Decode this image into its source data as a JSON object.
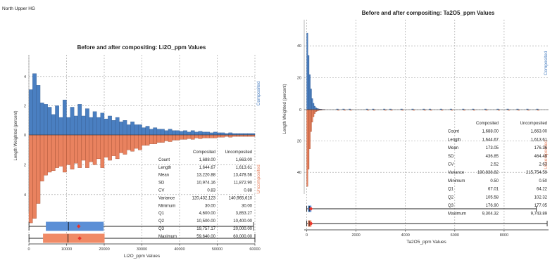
{
  "page": {
    "title": "North Upper HG"
  },
  "colors": {
    "composited": "#4a7fc1",
    "uncomposited": "#e9825f",
    "composited_box": "#5b8fd6",
    "uncomposited_box": "#f08a66",
    "mean_marker": "#e8332a",
    "grid": "#9a9a9a"
  },
  "chart_data": [
    {
      "type": "histogram",
      "title": "Before and after compositing: Li2O_ppm Values",
      "xlabel": "Li2O_ppm Values",
      "ylabel": "Length Weighted (percent)",
      "xlim": [
        0,
        60000
      ],
      "x_ticks": [
        "0",
        "10000",
        "20000",
        "30000",
        "40000",
        "50000",
        "60000"
      ],
      "y_upper_ticks": [
        "4",
        "2",
        "0"
      ],
      "y_lower_ticks": [
        "2",
        "4"
      ],
      "ylim_upper": [
        0,
        5
      ],
      "ylim_lower": [
        0,
        5
      ],
      "grid": true,
      "legend_position": "right",
      "series": [
        {
          "name": "Composited",
          "bin_width": 1000,
          "values": [
            3.1,
            4.2,
            3.4,
            2.2,
            2.1,
            1.9,
            1.4,
            2.0,
            1.2,
            2.4,
            1.2,
            1.9,
            1.3,
            2.1,
            1.3,
            1.8,
            1.2,
            1.6,
            1.2,
            1.5,
            1.1,
            1.3,
            1.0,
            1.2,
            0.9,
            1.0,
            0.7,
            0.9,
            0.7,
            0.7,
            0.5,
            0.6,
            0.4,
            0.5,
            0.4,
            0.4,
            0.3,
            0.4,
            0.3,
            0.3,
            0.25,
            0.3,
            0.2,
            0.3,
            0.2,
            0.25,
            0.2,
            0.2,
            0.15,
            0.2,
            0.15,
            0.15,
            0.1,
            0.15,
            0.1,
            0.1,
            0.1,
            0.1,
            0.1,
            0.1
          ]
        },
        {
          "name": "Uncomposited",
          "bin_width": 1000,
          "values": [
            5.9,
            5.6,
            4.6,
            3.1,
            2.7,
            2.5,
            2.4,
            2.2,
            2.1,
            2.5,
            2.0,
            2.3,
            1.9,
            2.2,
            1.7,
            2.2,
            1.8,
            2.0,
            1.6,
            2.2,
            1.5,
            1.7,
            1.4,
            1.6,
            1.2,
            1.3,
            1.0,
            1.1,
            0.9,
            1.0,
            0.7,
            0.7,
            0.6,
            0.6,
            0.5,
            0.5,
            0.4,
            0.45,
            0.35,
            0.35,
            0.3,
            0.3,
            0.25,
            0.3,
            0.2,
            0.25,
            0.2,
            0.2,
            0.2,
            0.2,
            0.15,
            0.15,
            0.1,
            0.15,
            0.1,
            0.1,
            0.1,
            0.1,
            0.1,
            0.1
          ]
        }
      ],
      "boxplots": [
        {
          "name": "Composited",
          "min": 30.0,
          "q1": 4600.0,
          "median": 10500.0,
          "q3": 19757.17,
          "max": 59640.0,
          "mean": 13220.88
        },
        {
          "name": "Uncomposited",
          "min": 30.0,
          "q1": 3853.27,
          "median": 10400.0,
          "q3": 20000.0,
          "max": 60000.0,
          "mean": 13478.56
        }
      ],
      "stats_table": {
        "headers": [
          "",
          "Composited",
          "Uncomposited"
        ],
        "rows": [
          [
            "Count",
            "1,688.00",
            "1,663.00"
          ],
          [
            "Length",
            "1,644.67",
            "1,613.61"
          ],
          [
            "Mean",
            "13,220.88",
            "13,478.56"
          ],
          [
            "SD",
            "10,974.16",
            "11,872.90"
          ],
          [
            "CV",
            "0.83",
            "0.88"
          ],
          [
            "Variance",
            "120,432,123",
            "140,965,610"
          ],
          [
            "Minimum",
            "30.00",
            "30.00"
          ],
          [
            "Q1",
            "4,600.00",
            "3,853.27"
          ],
          [
            "Q2",
            "10,500.00",
            "10,400.00"
          ],
          [
            "Q3",
            "19,757.17",
            "20,000.00"
          ],
          [
            "Maximum",
            "59,640.00",
            "60,000.00"
          ]
        ]
      }
    },
    {
      "type": "histogram",
      "title": "Before and after compositing: Ta2O5_ppm Values",
      "xlabel": "Ta2O5_ppm Values",
      "ylabel": "Length Weighted (percent)",
      "xlim": [
        -100,
        9800
      ],
      "x_ticks": [
        "0",
        "2000",
        "4000",
        "6000",
        "8000"
      ],
      "y_upper_ticks": [
        "40",
        "20",
        "0"
      ],
      "y_lower_ticks": [
        "20",
        "40"
      ],
      "ylim_upper": [
        0,
        52
      ],
      "ylim_lower": [
        0,
        52
      ],
      "grid": true,
      "legend_position": "right",
      "series": [
        {
          "name": "Composited",
          "bin_width": 50,
          "values": [
            48,
            34,
            22,
            13,
            7,
            4,
            2.2,
            1.2,
            0.8,
            0.5,
            0.4,
            0.3,
            0.2,
            0.15,
            0.1
          ]
        },
        {
          "name": "Uncomposited",
          "bin_width": 50,
          "values": [
            49,
            38,
            25,
            14,
            8,
            4.5,
            2.5,
            1.3,
            0.9,
            0.6,
            0.4,
            0.3,
            0.2,
            0.15,
            0.1
          ]
        }
      ],
      "outlier_ticks_x": [
        1200,
        1450,
        1700,
        2400,
        2650,
        3100,
        3350,
        3800,
        4250,
        4700,
        4950,
        5400,
        5800,
        6300,
        6700,
        7200,
        7700,
        8100,
        8500,
        8900,
        9300
      ],
      "boxplots": [
        {
          "name": "Composited",
          "min": 0.5,
          "q1": 67.01,
          "median": 105.58,
          "q3": 176.9,
          "max": 9304.32,
          "mean": 173.05
        },
        {
          "name": "Uncomposited",
          "min": 0.5,
          "q1": 64.22,
          "median": 102.32,
          "q3": 177.05,
          "max": 9743.89,
          "mean": 176.36
        }
      ],
      "stats_table": {
        "headers": [
          "",
          "Composited",
          "Uncomposited"
        ],
        "rows": [
          [
            "Count",
            "1,688.00",
            "1,663.00"
          ],
          [
            "Length",
            "1,644.67",
            "1,613.61"
          ],
          [
            "Mean",
            "173.05",
            "176.36"
          ],
          [
            "SD",
            "436.85",
            "464.49"
          ],
          [
            "CV",
            "2.52",
            "2.63"
          ],
          [
            "Variance",
            "190,838.82",
            "215,754.59"
          ],
          [
            "Minimum",
            "0.50",
            "0.50"
          ],
          [
            "Q1",
            "67.01",
            "64.22"
          ],
          [
            "Q2",
            "105.58",
            "102.32"
          ],
          [
            "Q3",
            "176.90",
            "177.05"
          ],
          [
            "Maximum",
            "9,304.32",
            "9,743.89"
          ]
        ]
      }
    }
  ]
}
